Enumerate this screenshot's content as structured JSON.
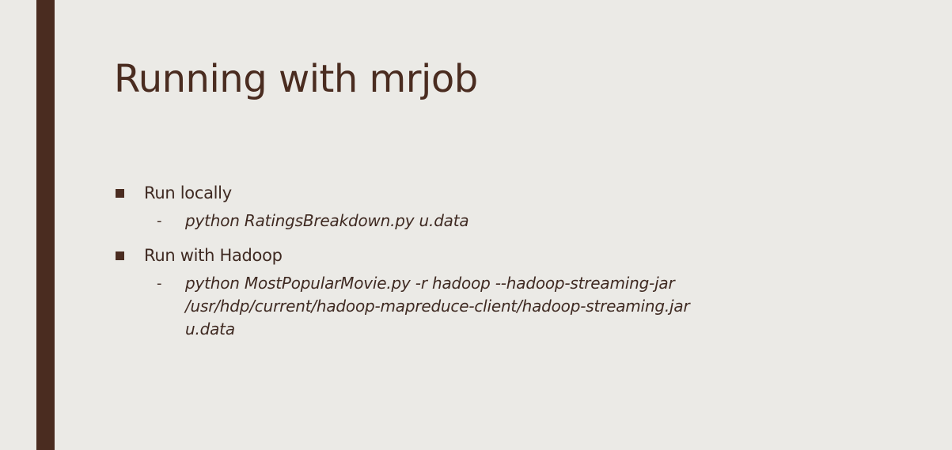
{
  "slide": {
    "title": "Running with mrjob",
    "bullets": [
      {
        "label": "Run locally",
        "sub": {
          "dash": "-",
          "lines": [
            "python RatingsBreakdown.py u.data"
          ]
        }
      },
      {
        "label": "Run with Hadoop",
        "sub": {
          "dash": "-",
          "lines": [
            "python MostPopularMovie.py -r hadoop --hadoop-streaming-jar",
            "/usr/hdp/current/hadoop-mapreduce-client/hadoop-streaming.jar",
            "u.data"
          ]
        }
      }
    ]
  },
  "colors": {
    "background": "#ebeae6",
    "accent_bar": "#4a2c20",
    "text": "#3f2a22"
  }
}
